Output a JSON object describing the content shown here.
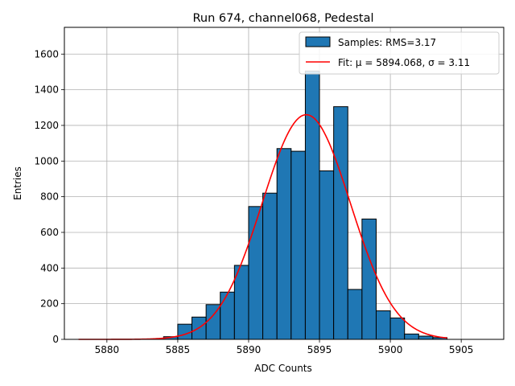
{
  "chart_data": {
    "type": "bar",
    "title": "Run 674, channel068, Pedestal",
    "xlabel": "ADC Counts",
    "ylabel": "Entries",
    "xlim": [
      5877,
      5908
    ],
    "ylim": [
      0,
      1750
    ],
    "x_ticks": [
      5880,
      5885,
      5890,
      5895,
      5900,
      5905
    ],
    "y_ticks": [
      0,
      200,
      400,
      600,
      800,
      1000,
      1200,
      1400,
      1600
    ],
    "grid": true,
    "legend_position": "top-right",
    "bin_width": 1,
    "bins": [
      {
        "x": 5884,
        "value": 15
      },
      {
        "x": 5885,
        "value": 85
      },
      {
        "x": 5886,
        "value": 125
      },
      {
        "x": 5887,
        "value": 195
      },
      {
        "x": 5888,
        "value": 265
      },
      {
        "x": 5889,
        "value": 415
      },
      {
        "x": 5890,
        "value": 745
      },
      {
        "x": 5891,
        "value": 820
      },
      {
        "x": 5892,
        "value": 1070
      },
      {
        "x": 5893,
        "value": 1055
      },
      {
        "x": 5894,
        "value": 1505
      },
      {
        "x": 5895,
        "value": 945
      },
      {
        "x": 5896,
        "value": 1305
      },
      {
        "x": 5897,
        "value": 280
      },
      {
        "x": 5898,
        "value": 675
      },
      {
        "x": 5899,
        "value": 160
      },
      {
        "x": 5900,
        "value": 120
      },
      {
        "x": 5901,
        "value": 30
      },
      {
        "x": 5902,
        "value": 18
      },
      {
        "x": 5903,
        "value": 10
      }
    ],
    "series": [
      {
        "name": "Samples: RMS=3.17",
        "kind": "histogram",
        "color": "#1f77b4",
        "edge_color": "#000000"
      },
      {
        "name": "Fit: μ = 5894.068, σ = 3.11",
        "kind": "line",
        "color": "#ff0000",
        "mu": 5894.068,
        "sigma": 3.11,
        "amplitude": 1260,
        "x_range": [
          5878,
          5904
        ]
      }
    ]
  }
}
